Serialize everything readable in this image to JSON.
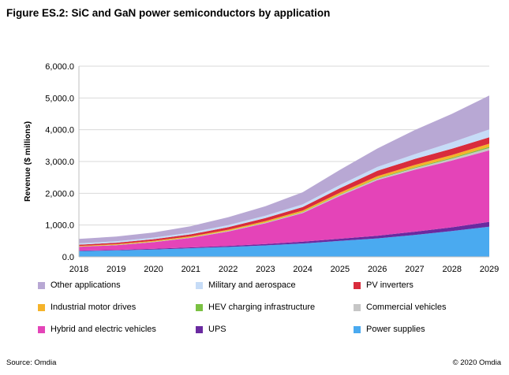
{
  "page": {
    "title": "Figure ES.2: SiC and GaN power semiconductors by application",
    "source": "Source: Omdia",
    "copyright": "© 2020 Omdia"
  },
  "chart_data": {
    "type": "area",
    "stacked": true,
    "title": "Figure ES.2: SiC and GaN power semiconductors by application",
    "xlabel": "",
    "ylabel": "Revenue ($ millions)",
    "ylim": [
      0,
      6000
    ],
    "yticks": [
      0,
      1000,
      2000,
      3000,
      4000,
      5000,
      6000
    ],
    "ytick_labels": [
      "0.0",
      "1,000.0",
      "2,000.0",
      "3,000.0",
      "4,000.0",
      "5,000.0",
      "6,000.0"
    ],
    "grid": "horizontal",
    "legend_position": "bottom",
    "categories": [
      "2018",
      "2019",
      "2020",
      "2021",
      "2022",
      "2023",
      "2024",
      "2025",
      "2026",
      "2027",
      "2028",
      "2029"
    ],
    "series": [
      {
        "name": "Power supplies",
        "color": "#4aaaf0",
        "values": [
          180,
          200,
          230,
          270,
          310,
          360,
          420,
          500,
          580,
          690,
          810,
          950
        ]
      },
      {
        "name": "UPS",
        "color": "#6a2aa0",
        "values": [
          15,
          18,
          22,
          28,
          35,
          45,
          55,
          70,
          85,
          100,
          120,
          150
        ]
      },
      {
        "name": "Hybrid and electric vehicles",
        "color": "#e444b8",
        "values": [
          120,
          150,
          210,
          300,
          450,
          650,
          900,
          1350,
          1750,
          1950,
          2100,
          2250
        ]
      },
      {
        "name": "Commercial vehicles",
        "color": "#c6c6c6",
        "values": [
          5,
          5,
          8,
          10,
          15,
          20,
          25,
          30,
          40,
          50,
          60,
          75
        ]
      },
      {
        "name": "HEV charging infrastructure",
        "color": "#7ac142",
        "values": [
          3,
          4,
          5,
          6,
          8,
          10,
          12,
          15,
          20,
          25,
          30,
          35
        ]
      },
      {
        "name": "Industrial motor drives",
        "color": "#f5b32a",
        "values": [
          20,
          22,
          25,
          30,
          35,
          40,
          45,
          55,
          65,
          75,
          85,
          100
        ]
      },
      {
        "name": "PV inverters",
        "color": "#d92c3c",
        "values": [
          40,
          45,
          55,
          65,
          80,
          95,
          110,
          140,
          170,
          190,
          200,
          200
        ]
      },
      {
        "name": "Military and aerospace",
        "color": "#c6dcf7",
        "values": [
          40,
          45,
          50,
          55,
          65,
          75,
          85,
          100,
          120,
          150,
          200,
          250
        ]
      },
      {
        "name": "Other applications",
        "color": "#b8a8d4",
        "values": [
          140,
          150,
          160,
          200,
          250,
          300,
          380,
          480,
          580,
          760,
          895,
          1065
        ]
      }
    ],
    "legend_order": [
      "Other applications",
      "Military and aerospace",
      "PV inverters",
      "Industrial motor drives",
      "HEV charging infrastructure",
      "Commercial vehicles",
      "Hybrid and electric vehicles",
      "UPS",
      "Power supplies"
    ]
  }
}
